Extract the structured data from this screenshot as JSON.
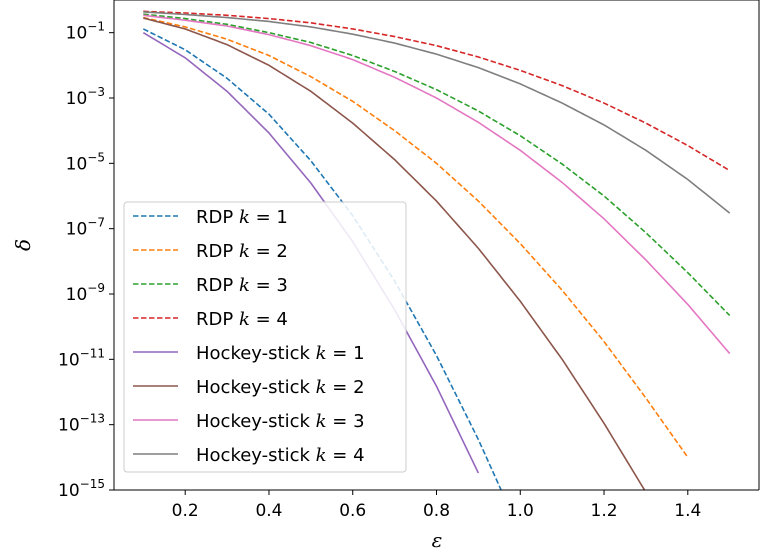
{
  "chart_data": {
    "type": "line",
    "title": "",
    "xlabel": "ε",
    "ylabel": "δ",
    "xlim": [
      0.03,
      1.57
    ],
    "ylim": [
      1e-15,
      1.0
    ],
    "yscale": "log",
    "grid": false,
    "legend_position": "lower-left",
    "x_ticks": [
      {
        "value": 0.2,
        "label": "0.2"
      },
      {
        "value": 0.4,
        "label": "0.4"
      },
      {
        "value": 0.6,
        "label": "0.6"
      },
      {
        "value": 0.8,
        "label": "0.8"
      },
      {
        "value": 1.0,
        "label": "1.0"
      },
      {
        "value": 1.2,
        "label": "1.2"
      },
      {
        "value": 1.4,
        "label": "1.4"
      }
    ],
    "y_ticks": [
      {
        "value": 1e-15,
        "base": "10",
        "exp": "−15"
      },
      {
        "value": 1e-13,
        "base": "10",
        "exp": "−13"
      },
      {
        "value": 1e-11,
        "base": "10",
        "exp": "−11"
      },
      {
        "value": 1e-09,
        "base": "10",
        "exp": "−9"
      },
      {
        "value": 1e-07,
        "base": "10",
        "exp": "−7"
      },
      {
        "value": 1e-05,
        "base": "10",
        "exp": "−5"
      },
      {
        "value": 0.001,
        "base": "10",
        "exp": "−3"
      },
      {
        "value": 0.1,
        "base": "10",
        "exp": "−1"
      }
    ],
    "x": [
      0.1,
      0.2,
      0.3,
      0.4,
      0.5,
      0.6,
      0.7,
      0.8,
      0.9,
      1.0,
      1.1,
      1.2,
      1.3,
      1.4,
      1.5
    ],
    "series": [
      {
        "name": "RDP k = 1",
        "prefix": "RDP ",
        "k": "1",
        "color": "#1f77b4",
        "dash": true,
        "values": [
          0.13,
          0.03,
          0.004,
          0.00032,
          1.2e-05,
          2.5e-07,
          2.5e-09,
          1.3e-11,
          3.5e-14,
          5e-17,
          null,
          null,
          null,
          null,
          null
        ]
      },
      {
        "name": "RDP k = 2",
        "prefix": "RDP ",
        "k": "2",
        "color": "#ff7f0e",
        "dash": true,
        "values": [
          0.29,
          0.15,
          0.063,
          0.02,
          0.0045,
          0.00079,
          0.0001,
          1e-05,
          7e-07,
          3.5e-08,
          1.3e-09,
          3.5e-11,
          6.5e-13,
          1e-14,
          null
        ]
      },
      {
        "name": "RDP k = 3",
        "prefix": "RDP ",
        "k": "3",
        "color": "#2ca02c",
        "dash": true,
        "values": [
          0.37,
          0.27,
          0.18,
          0.1,
          0.05,
          0.02,
          0.0065,
          0.0018,
          0.0004,
          7e-05,
          9.5e-06,
          1e-06,
          7.5e-08,
          4.5e-09,
          2.2e-10
        ]
      },
      {
        "name": "RDP k = 4",
        "prefix": "RDP ",
        "k": "4",
        "color": "#d62728",
        "dash": true,
        "values": [
          0.45,
          0.4,
          0.34,
          0.27,
          0.2,
          0.13,
          0.076,
          0.04,
          0.018,
          0.007,
          0.0024,
          0.0007,
          0.00017,
          3.5e-05,
          6e-06
        ]
      },
      {
        "name": "Hockey-stick k = 1",
        "prefix": "Hockey-stick ",
        "k": "1",
        "color": "#9467bd",
        "dash": false,
        "values": [
          0.1,
          0.017,
          0.0016,
          8.5e-05,
          2.5e-06,
          4e-08,
          3.3e-10,
          1.5e-12,
          3.3e-15,
          null,
          null,
          null,
          null,
          null,
          null
        ]
      },
      {
        "name": "Hockey-stick k = 2",
        "prefix": "Hockey-stick ",
        "k": "2",
        "color": "#8c564b",
        "dash": false,
        "values": [
          0.28,
          0.13,
          0.043,
          0.01,
          0.0016,
          0.00017,
          1.3e-05,
          7e-07,
          2.5e-08,
          6e-10,
          1e-11,
          1.1e-13,
          8.5e-16,
          null,
          null
        ]
      },
      {
        "name": "Hockey-stick k = 3",
        "prefix": "Hockey-stick ",
        "k": "3",
        "color": "#e377c2",
        "dash": false,
        "values": [
          0.34,
          0.24,
          0.16,
          0.087,
          0.04,
          0.015,
          0.0043,
          0.001,
          0.00018,
          2.5e-05,
          2.6e-06,
          2e-07,
          1.1e-08,
          4.8e-10,
          1.5e-11
        ]
      },
      {
        "name": "Hockey-stick k = 4",
        "prefix": "Hockey-stick ",
        "k": "4",
        "color": "#7f7f7f",
        "dash": false,
        "values": [
          0.43,
          0.36,
          0.29,
          0.22,
          0.15,
          0.09,
          0.048,
          0.022,
          0.0085,
          0.0027,
          0.0007,
          0.00015,
          2.5e-05,
          3.2e-06,
          3e-07
        ]
      }
    ]
  }
}
